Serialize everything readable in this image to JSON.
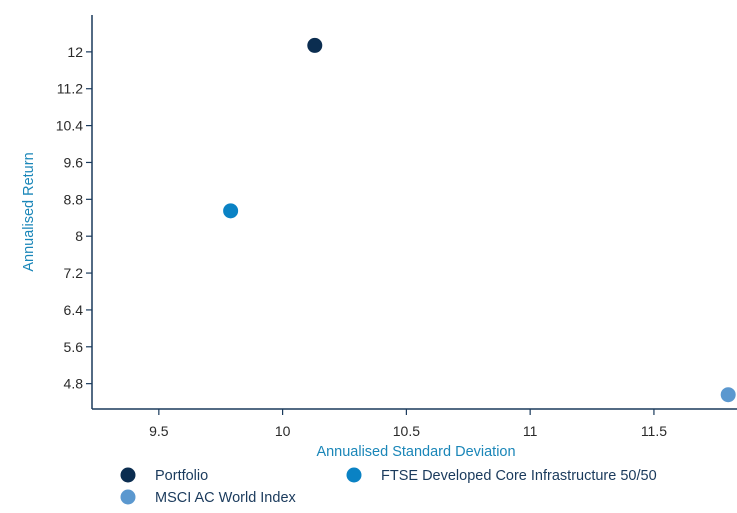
{
  "chart_data": {
    "type": "scatter",
    "xlabel": "Annualised Standard Deviation",
    "ylabel": "Annualised Return",
    "xlim": [
      9.23,
      11.88
    ],
    "ylim": [
      4.25,
      12.8
    ],
    "x_ticks": [
      9.5,
      10,
      10.5,
      11,
      11.5
    ],
    "x_tick_labels": [
      "9.5",
      "10",
      "10.5",
      "11",
      "11.5"
    ],
    "y_ticks": [
      4.8,
      5.6,
      6.4,
      7.2,
      8,
      8.8,
      9.6,
      10.4,
      11.2,
      12
    ],
    "y_tick_labels": [
      "4.8",
      "5.6",
      "6.4",
      "7.2",
      "8",
      "8.8",
      "9.6",
      "10.4",
      "11.2",
      "12"
    ],
    "grid": false,
    "legend_position": "bottom",
    "series": [
      {
        "name": "Portfolio",
        "color": "#0b2d50",
        "x": [
          10.13
        ],
        "y": [
          12.14
        ]
      },
      {
        "name": "FTSE Developed Core Infrastructure 50/50",
        "color": "#0a82c4",
        "x": [
          9.79
        ],
        "y": [
          8.55
        ]
      },
      {
        "name": "MSCI AC World Index",
        "color": "#5b98cf",
        "x": [
          11.8
        ],
        "y": [
          4.56
        ]
      }
    ]
  }
}
